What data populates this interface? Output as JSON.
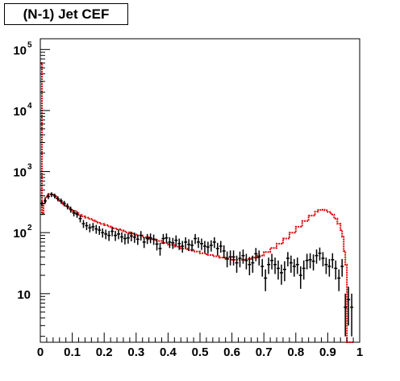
{
  "chart_data": {
    "type": "line",
    "title": "(N-1) Jet CEF",
    "xlabel": "",
    "ylabel": "",
    "xlim": [
      0,
      1
    ],
    "ylim": [
      1.6,
      150000
    ],
    "yscale": "log",
    "grid": false,
    "legend": "none",
    "x_ticks": [
      "0",
      "0.1",
      "0.2",
      "0.3",
      "0.4",
      "0.5",
      "0.6",
      "0.7",
      "0.8",
      "0.9",
      "1"
    ],
    "y_ticks": [
      {
        "value": 10,
        "base": "10",
        "exp": ""
      },
      {
        "value": 100,
        "base": "10",
        "exp": "2"
      },
      {
        "value": 1000,
        "base": "10",
        "exp": "3"
      },
      {
        "value": 10000,
        "base": "10",
        "exp": "4"
      },
      {
        "value": 100000,
        "base": "10",
        "exp": "5"
      }
    ],
    "series": [
      {
        "kind": "histogram",
        "color": "#dd0000",
        "x": [
          0.0,
          0.005,
          0.01,
          0.015,
          0.02,
          0.025,
          0.03,
          0.035,
          0.04,
          0.045,
          0.05,
          0.055,
          0.06,
          0.065,
          0.07,
          0.075,
          0.08,
          0.085,
          0.09,
          0.095,
          0.1,
          0.11,
          0.12,
          0.13,
          0.14,
          0.15,
          0.16,
          0.17,
          0.18,
          0.19,
          0.2,
          0.21,
          0.22,
          0.23,
          0.24,
          0.25,
          0.26,
          0.27,
          0.28,
          0.29,
          0.3,
          0.32,
          0.34,
          0.36,
          0.38,
          0.4,
          0.42,
          0.44,
          0.46,
          0.48,
          0.5,
          0.52,
          0.54,
          0.56,
          0.58,
          0.6,
          0.62,
          0.64,
          0.66,
          0.68,
          0.7,
          0.72,
          0.74,
          0.76,
          0.78,
          0.8,
          0.82,
          0.84,
          0.86,
          0.87,
          0.88,
          0.89,
          0.9,
          0.91,
          0.92,
          0.93,
          0.94,
          0.945,
          0.95,
          0.955,
          0.96,
          0.965,
          0.97,
          0.975
        ],
        "values": [
          60000,
          200,
          300,
          370,
          410,
          430,
          430,
          420,
          405,
          390,
          370,
          350,
          330,
          310,
          295,
          280,
          265,
          255,
          245,
          235,
          225,
          208,
          195,
          185,
          176,
          168,
          160,
          152,
          145,
          139,
          133,
          127,
          122,
          117,
          113,
          109,
          105,
          101,
          97,
          94,
          90,
          84,
          78,
          73,
          68,
          63,
          59,
          55,
          52,
          49,
          46,
          43,
          41,
          39,
          37,
          36,
          36,
          37,
          39,
          42,
          48,
          56,
          66,
          80,
          100,
          125,
          155,
          190,
          220,
          235,
          238,
          232,
          218,
          198,
          170,
          140,
          110,
          85,
          50,
          30,
          1.6,
          1.6,
          1.6,
          1.6
        ]
      },
      {
        "kind": "points",
        "color": "#000000",
        "x": [
          0.005,
          0.015,
          0.025,
          0.035,
          0.045,
          0.055,
          0.065,
          0.075,
          0.085,
          0.095,
          0.105,
          0.115,
          0.125,
          0.135,
          0.145,
          0.155,
          0.165,
          0.175,
          0.185,
          0.195,
          0.205,
          0.215,
          0.225,
          0.235,
          0.245,
          0.255,
          0.265,
          0.275,
          0.285,
          0.295,
          0.305,
          0.315,
          0.325,
          0.335,
          0.345,
          0.355,
          0.365,
          0.375,
          0.385,
          0.395,
          0.405,
          0.415,
          0.425,
          0.435,
          0.445,
          0.455,
          0.465,
          0.475,
          0.485,
          0.495,
          0.505,
          0.515,
          0.525,
          0.535,
          0.545,
          0.555,
          0.565,
          0.575,
          0.585,
          0.595,
          0.605,
          0.615,
          0.625,
          0.635,
          0.645,
          0.655,
          0.665,
          0.675,
          0.685,
          0.695,
          0.705,
          0.715,
          0.725,
          0.735,
          0.745,
          0.755,
          0.765,
          0.775,
          0.785,
          0.795,
          0.805,
          0.815,
          0.825,
          0.835,
          0.845,
          0.855,
          0.865,
          0.875,
          0.885,
          0.895,
          0.905,
          0.915,
          0.925,
          0.935,
          0.945,
          0.955,
          0.965,
          0.975
        ],
        "values": [
          300,
          330,
          390,
          420,
          400,
          360,
          330,
          300,
          270,
          240,
          210,
          200,
          170,
          140,
          130,
          120,
          125,
          115,
          110,
          100,
          95,
          90,
          105,
          90,
          95,
          85,
          80,
          82,
          88,
          84,
          78,
          90,
          70,
          80,
          82,
          78,
          65,
          55,
          80,
          82,
          70,
          68,
          75,
          66,
          60,
          70,
          64,
          62,
          80,
          70,
          66,
          60,
          58,
          62,
          70,
          55,
          60,
          50,
          38,
          40,
          40,
          32,
          38,
          42,
          35,
          30,
          32,
          45,
          40,
          28,
          18,
          30,
          35,
          30,
          26,
          22,
          25,
          38,
          32,
          28,
          30,
          20,
          26,
          35,
          36,
          34,
          42,
          46,
          38,
          30,
          28,
          36,
          26,
          18,
          28,
          6,
          8,
          6
        ],
        "errors": [
          30,
          33,
          36,
          38,
          36,
          34,
          33,
          31,
          30,
          28,
          26,
          25,
          23,
          21,
          20,
          19,
          19,
          19,
          18,
          17,
          17,
          17,
          18,
          17,
          17,
          16,
          16,
          16,
          16,
          16,
          15,
          16,
          14,
          15,
          15,
          15,
          14,
          13,
          15,
          15,
          14,
          14,
          15,
          14,
          13,
          14,
          14,
          13,
          15,
          14,
          14,
          13,
          13,
          13,
          14,
          13,
          13,
          12,
          11,
          11,
          11,
          10,
          11,
          11,
          10,
          10,
          10,
          11,
          11,
          9,
          7,
          9,
          10,
          9,
          9,
          8,
          9,
          10,
          10,
          9,
          9,
          8,
          9,
          10,
          10,
          10,
          11,
          11,
          10,
          9,
          9,
          10,
          9,
          7,
          9,
          4,
          5,
          4
        ]
      }
    ]
  }
}
